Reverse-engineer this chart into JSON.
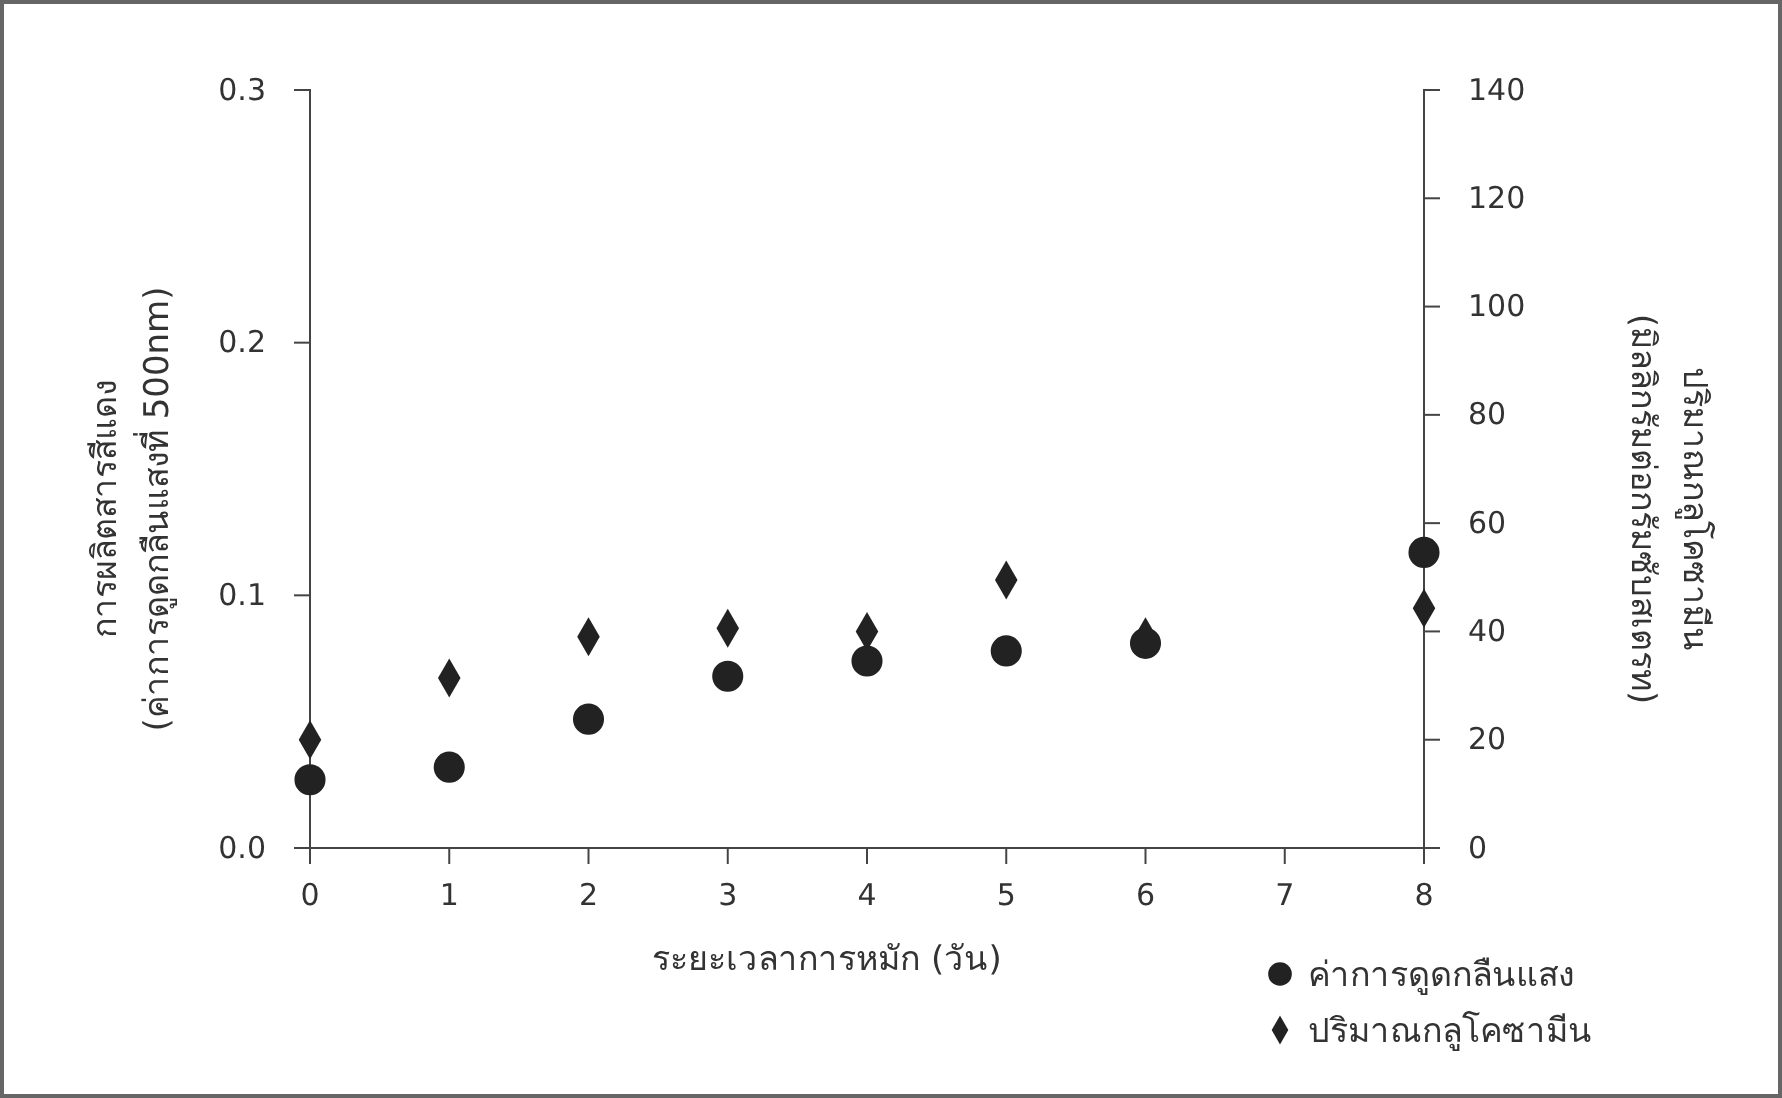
{
  "chart_data": {
    "type": "scatter",
    "xlabel": "ระยะเวลาการหมัก (วัน)",
    "ylabel": "การผลิตสารสีแดง\n(ค่าการดูดกลืนแสงที่ 500nm)",
    "y2label": "ปริมาณกลูโคซามีน\n(มิลลิกรัมต่อกรัมซับสเตรท)",
    "x": [
      0,
      1,
      2,
      3,
      4,
      5,
      6,
      8
    ],
    "xlim": [
      0,
      8
    ],
    "xticks": [
      0,
      1,
      2,
      3,
      4,
      5,
      6,
      7,
      8
    ],
    "ylim": [
      0,
      0.3
    ],
    "yticks": [
      {
        "value": 0,
        "label": "0.0"
      },
      0.1,
      0.2,
      0.3
    ],
    "y2lim": [
      0,
      140
    ],
    "y2ticks": [
      0,
      20,
      40,
      60,
      80,
      100,
      120,
      140
    ],
    "legend": "bottom right",
    "grid": false,
    "series": [
      {
        "name": "ค่าการดูดกลืนแสง",
        "color": "#222222",
        "marker": "circle",
        "values": [
          0.027,
          0.032,
          0.051,
          0.068,
          0.074,
          0.078,
          0.081,
          0.117
        ]
      },
      {
        "name": "ปริมาณกลูโคซามีน",
        "color": "#222222",
        "marker": "diamond",
        "axis": "y2",
        "values": [
          20,
          31.4,
          39,
          40.6,
          40,
          49.5,
          39,
          44.3
        ]
      }
    ]
  }
}
